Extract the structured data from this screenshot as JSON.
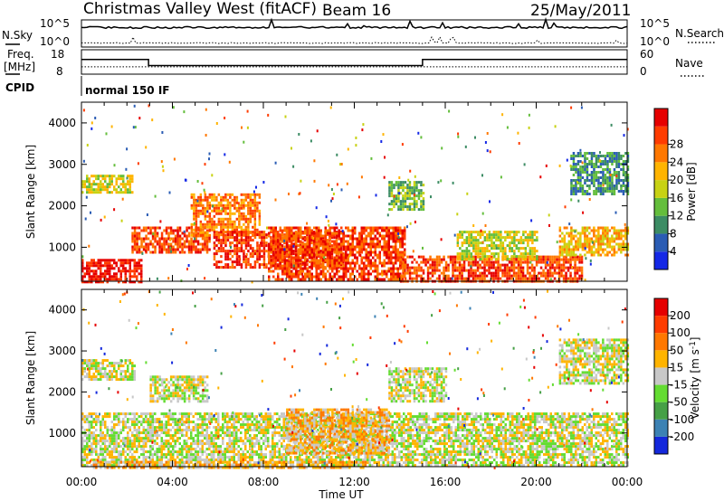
{
  "header": {
    "title": "Christmas Valley West (fitACF)",
    "beam": "Beam 16",
    "date": "25/May/2011"
  },
  "top_panels": {
    "nsky_label": "N.Sky",
    "nsky_ticks": [
      "10^5",
      "10^0"
    ],
    "nsearch_label": "N.Search",
    "nsearch_ticks": [
      "10^5",
      "10^0"
    ],
    "freq_label_line1": "Freq.",
    "freq_label_line2": "[MHz]",
    "freq_ticks": [
      "18",
      "8"
    ],
    "nave_label": "Nave",
    "nave_ticks": [
      "60",
      "0"
    ],
    "cpid_label": "CPID",
    "cpid_value": "normal 150 IF"
  },
  "chart_data": [
    {
      "type": "heatmap",
      "name": "power",
      "ylabel": "Slant Range [km]",
      "yticks": [
        1000,
        2000,
        3000,
        4000
      ],
      "ylim": [
        180,
        4500
      ],
      "xlim_hours": [
        0,
        24
      ],
      "colorbar": {
        "label": "Power [dB]",
        "ticks": [
          "4",
          "8",
          "12",
          "16",
          "20",
          "24",
          "28"
        ],
        "colors": [
          "#1428e6",
          "#2a5cb4",
          "#3c8c64",
          "#64be3c",
          "#c8d214",
          "#ffb400",
          "#ff7800",
          "#ff3c00",
          "#e60000"
        ]
      },
      "regions": [
        {
          "t0": 0.0,
          "t1": 2.6,
          "r0": 180,
          "r1": 720,
          "level": 8
        },
        {
          "t0": 0.0,
          "t1": 2.2,
          "r0": 2350,
          "r1": 2750,
          "level": 4
        },
        {
          "t0": 2.2,
          "t1": 5.6,
          "r0": 900,
          "r1": 1500,
          "level": 7
        },
        {
          "t0": 4.8,
          "t1": 7.8,
          "r0": 1300,
          "r1": 2300,
          "level": 6
        },
        {
          "t0": 5.8,
          "t1": 11.5,
          "r0": 500,
          "r1": 1400,
          "level": 7
        },
        {
          "t0": 8.2,
          "t1": 14.2,
          "r0": 250,
          "r1": 1500,
          "level": 7
        },
        {
          "t0": 14.0,
          "t1": 22.0,
          "r0": 200,
          "r1": 800,
          "level": 7
        },
        {
          "t0": 16.5,
          "t1": 20.0,
          "r0": 700,
          "r1": 1400,
          "level": 4
        },
        {
          "t0": 21.0,
          "t1": 24.0,
          "r0": 800,
          "r1": 1500,
          "level": 5
        },
        {
          "t0": 13.5,
          "t1": 15.0,
          "r0": 1900,
          "r1": 2600,
          "level": 3
        },
        {
          "t0": 21.5,
          "t1": 24.0,
          "r0": 2300,
          "r1": 3300,
          "level": 2
        }
      ]
    },
    {
      "type": "heatmap",
      "name": "velocity",
      "ylabel": "Slant Range [km]",
      "yticks": [
        1000,
        2000,
        3000,
        4000
      ],
      "ylim": [
        180,
        4500
      ],
      "xlim_hours": [
        0,
        24
      ],
      "xticks": [
        "00:00",
        "04:00",
        "08:00",
        "12:00",
        "16:00",
        "20:00",
        "00:00"
      ],
      "xlabel": "Time UT",
      "colorbar": {
        "label": "Velocity [m s^-1]",
        "ticks": [
          "200",
          "100",
          "50",
          "15",
          "-15",
          "-50",
          "-100",
          "-200"
        ],
        "colors": [
          "#1428dc",
          "#3c82b4",
          "#46a046",
          "#64dc32",
          "#c8c8c8",
          "#ffb400",
          "#ff7800",
          "#ff3c00",
          "#e60000"
        ]
      },
      "regions": [
        {
          "t0": 0.0,
          "t1": 24.0,
          "r0": 200,
          "r1": 1500,
          "level": 4
        },
        {
          "t0": 0.0,
          "t1": 2.3,
          "r0": 2300,
          "r1": 2800,
          "level": 4
        },
        {
          "t0": 9.0,
          "t1": 13.5,
          "r0": 500,
          "r1": 1600,
          "level": 5
        },
        {
          "t0": 3.0,
          "t1": 5.5,
          "r0": 1800,
          "r1": 2400,
          "level": 4
        },
        {
          "t0": 13.5,
          "t1": 16.0,
          "r0": 1800,
          "r1": 2600,
          "level": 4
        },
        {
          "t0": 21.0,
          "t1": 24.0,
          "r0": 2200,
          "r1": 3300,
          "level": 4
        },
        {
          "t0": 0.5,
          "t1": 12.5,
          "r0": 180,
          "r1": 320,
          "level": 5
        }
      ]
    }
  ],
  "line_data": {
    "nsky_level": 0.72,
    "nsearch_level": 0.38,
    "freq_high_hours": [
      [
        0,
        2.95
      ],
      [
        15.0,
        24
      ]
    ],
    "freq_low_hours": [
      [
        2.95,
        15.0
      ]
    ],
    "freq_high": 14,
    "freq_low": 11.5,
    "nave_level": 0.3
  }
}
